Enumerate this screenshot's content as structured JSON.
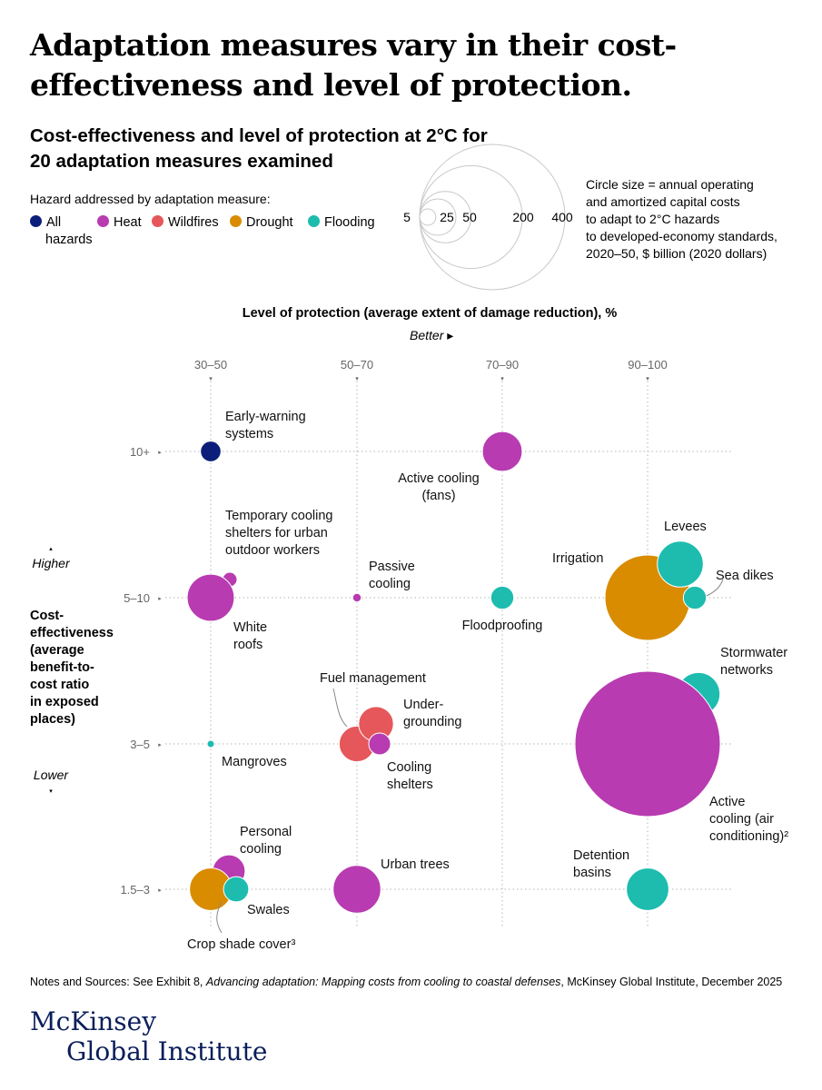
{
  "title": "Adaptation measures vary in their cost-effectiveness and level of protection.",
  "subtitle": "Cost-effectiveness and level of protection at 2°C for 20 adaptation measures examined",
  "legend": {
    "label": "Hazard addressed by adaptation measure:",
    "items": [
      {
        "key": "all",
        "label": "All",
        "label2": "hazards",
        "color": "#0b1f7a"
      },
      {
        "key": "heat",
        "label": "Heat",
        "color": "#b83bb1"
      },
      {
        "key": "wildfires",
        "label": "Wildfires",
        "color": "#e5575a"
      },
      {
        "key": "drought",
        "label": "Drought",
        "color": "#d98c00"
      },
      {
        "key": "flooding",
        "label": "Flooding",
        "color": "#1dbcaf"
      }
    ]
  },
  "size_legend": {
    "values": [
      5,
      25,
      50,
      200,
      400
    ],
    "labels": [
      "5",
      "25",
      "50",
      "200",
      "400"
    ],
    "note": [
      "Circle size = annual operating",
      "and amortized capital costs",
      "to adapt to 2°C hazards",
      "to developed-economy standards,",
      "2020–50, $ billion (2020 dollars)"
    ]
  },
  "chart_data": {
    "type": "scatter",
    "title": "Cost-effectiveness and level of protection at 2°C for 20 adaptation measures examined",
    "xlabel": "Level of protection (average extent of damage reduction), %",
    "x_better": "Better ▸",
    "x_categories": [
      "30–50",
      "50–70",
      "70–90",
      "90–100"
    ],
    "ylabel_lines": [
      "Cost-",
      "effectiveness",
      "(average",
      "benefit-to-",
      "cost ratio",
      "in exposed",
      "places)"
    ],
    "y_higher": "Higher",
    "y_lower": "Lower",
    "y_categories": [
      "10+",
      "5–10",
      "3–5",
      "1.5–3"
    ],
    "points": [
      {
        "name": "Early-warning systems",
        "label_lines": [
          "Early-warning",
          "systems"
        ],
        "hazard": "all",
        "x": "30–50",
        "y": "10+",
        "cost": 8,
        "dx": 0,
        "dy": 0
      },
      {
        "name": "Active cooling (fans)",
        "label_lines": [
          "Active cooling",
          "(fans)"
        ],
        "hazard": "heat",
        "x": "70–90",
        "y": "10+",
        "cost": 30,
        "dx": 0,
        "dy": 0
      },
      {
        "name": "Temporary cooling shelters for urban outdoor workers",
        "label_lines": [
          "Temporary cooling",
          "shelters for urban",
          "outdoor workers"
        ],
        "hazard": "heat",
        "x": "30–50",
        "y": "5–10",
        "cost": 4,
        "dx": 21,
        "dy": -20
      },
      {
        "name": "White roofs",
        "label_lines": [
          "White",
          "roofs"
        ],
        "hazard": "heat",
        "x": "30–50",
        "y": "5–10",
        "cost": 42,
        "dx": 0,
        "dy": 0
      },
      {
        "name": "Passive cooling",
        "label_lines": [
          "Passive",
          "cooling"
        ],
        "hazard": "heat",
        "x": "50–70",
        "y": "5–10",
        "cost": 1.4,
        "dx": 0,
        "dy": 0
      },
      {
        "name": "Floodproofing",
        "label_lines": [
          "Floodproofing"
        ],
        "hazard": "flooding",
        "x": "70–90",
        "y": "5–10",
        "cost": 10,
        "dx": 0,
        "dy": 0
      },
      {
        "name": "Irrigation",
        "label_lines": [
          "Irrigation"
        ],
        "hazard": "drought",
        "x": "90–100",
        "y": "5–10",
        "cost": 138,
        "dx": 0,
        "dy": 0
      },
      {
        "name": "Levees",
        "label_lines": [
          "Levees"
        ],
        "hazard": "flooding",
        "x": "90–100",
        "y": "5–10",
        "cost": 40,
        "dx": 36,
        "dy": -37
      },
      {
        "name": "Sea dikes",
        "label_lines": [
          "Sea dikes"
        ],
        "hazard": "flooding",
        "x": "90–100",
        "y": "5–10",
        "cost": 10,
        "dx": 52,
        "dy": 0
      },
      {
        "name": "Stormwater networks",
        "label_lines": [
          "Stormwater",
          "networks"
        ],
        "hazard": "flooding",
        "x": "90–100",
        "y": "3–5",
        "cost": 35,
        "dx": 56,
        "dy": -55
      },
      {
        "name": "Active cooling (air conditioning)",
        "label_lines": [
          "Active",
          "cooling (air",
          "conditioning)²"
        ],
        "hazard": "heat",
        "x": "90–100",
        "y": "3–5",
        "cost": 400,
        "dx": 0,
        "dy": 0
      },
      {
        "name": "Mangroves",
        "label_lines": [
          "Mangroves"
        ],
        "hazard": "flooding",
        "x": "30–50",
        "y": "3–5",
        "cost": 1,
        "dx": 0,
        "dy": 0
      },
      {
        "name": "Fuel management",
        "label_lines": [
          "Fuel management"
        ],
        "hazard": "wildfires",
        "x": "50–70",
        "y": "3–5",
        "cost": 24,
        "dx": 0,
        "dy": 0
      },
      {
        "name": "Undergrounding",
        "label_lines": [
          "Under-",
          "grounding"
        ],
        "hazard": "wildfires",
        "x": "50–70",
        "y": "3–5",
        "cost": 23,
        "dx": 21,
        "dy": -22
      },
      {
        "name": "Cooling shelters",
        "label_lines": [
          "Cooling",
          "shelters"
        ],
        "hazard": "heat",
        "x": "50–70",
        "y": "3–5",
        "cost": 9,
        "dx": 25,
        "dy": 0
      },
      {
        "name": "Personal cooling",
        "label_lines": [
          "Personal",
          "cooling"
        ],
        "hazard": "heat",
        "x": "30–50",
        "y": "1.5–3",
        "cost": 20,
        "dx": 20,
        "dy": -20
      },
      {
        "name": "Crop shade cover",
        "label_lines": [
          "Crop shade cover³"
        ],
        "hazard": "drought",
        "x": "30–50",
        "y": "1.5–3",
        "cost": 34,
        "dx": 0,
        "dy": 0
      },
      {
        "name": "Swales",
        "label_lines": [
          "Swales"
        ],
        "hazard": "flooding",
        "x": "30–50",
        "y": "1.5–3",
        "cost": 12,
        "dx": 28,
        "dy": 0
      },
      {
        "name": "Urban trees",
        "label_lines": [
          "Urban trees"
        ],
        "hazard": "heat",
        "x": "50–70",
        "y": "1.5–3",
        "cost": 43,
        "dx": 0,
        "dy": 0
      },
      {
        "name": "Detention basins",
        "label_lines": [
          "Detention",
          "basins"
        ],
        "hazard": "flooding",
        "x": "90–100",
        "y": "1.5–3",
        "cost": 34,
        "dx": 0,
        "dy": 0
      }
    ]
  },
  "footer": {
    "prefix": "Notes and Sources: See Exhibit 8, ",
    "italic": "Advancing adaptation: Mapping costs from cooling to coastal defenses",
    "suffix": ", McKinsey Global Institute, December 2025"
  },
  "logo": {
    "line1": "McKinsey",
    "line2": "Global Institute"
  }
}
